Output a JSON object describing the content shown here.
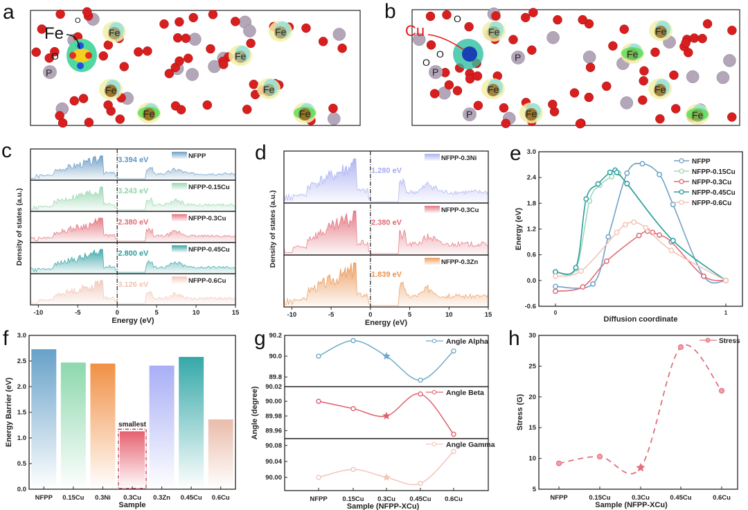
{
  "panels": {
    "a": {
      "letter": "a",
      "labels": {
        "fe_main": "Fe",
        "o": "O",
        "o_small": "O",
        "p": "P",
        "fe": "Fe"
      }
    },
    "b": {
      "letter": "b",
      "labels": {
        "cu": "Cu",
        "o": "O",
        "p": "P",
        "fe": "Fe"
      }
    },
    "c": {
      "letter": "c"
    },
    "d": {
      "letter": "d"
    },
    "e": {
      "letter": "e"
    },
    "f": {
      "letter": "f"
    },
    "g": {
      "letter": "g"
    },
    "h": {
      "letter": "h"
    }
  },
  "chart_data": [
    {
      "id": "c",
      "type": "area",
      "xlabel": "Energy (eV)",
      "ylabel": "Density of states (a.u.)",
      "xlim": [
        -11,
        15
      ],
      "xticks": [
        -10,
        -5,
        0,
        5,
        10,
        15
      ],
      "series": [
        {
          "name": "NFPP",
          "gap_label": "3.394 eV",
          "color": "#5f95c0"
        },
        {
          "name": "NFPP-0.15Cu",
          "gap_label": "3.243 eV",
          "color": "#8fd3a8"
        },
        {
          "name": "NFPP-0.3Cu",
          "gap_label": "2.380 eV",
          "color": "#e06a74"
        },
        {
          "name": "NFPP-0.45Cu",
          "gap_label": "2.800 eV",
          "color": "#2a9d9f"
        },
        {
          "name": "NFPP-0.6Cu",
          "gap_label": "3.126 eV",
          "color": "#f0c3b3"
        }
      ]
    },
    {
      "id": "d",
      "type": "area",
      "xlabel": "Energy (eV)",
      "ylabel": "Density of states (a.u.)",
      "xlim": [
        -11,
        15
      ],
      "xticks": [
        -10,
        -5,
        0,
        5,
        10,
        15
      ],
      "series": [
        {
          "name": "NFPP-0.3Ni",
          "gap_label": "1.280 eV",
          "color": "#a4aaf0"
        },
        {
          "name": "NFPP-0.3Cu",
          "gap_label": "2.380 eV",
          "color": "#e06a74"
        },
        {
          "name": "NFPP-0.3Zn",
          "gap_label": "1.839 eV",
          "color": "#ea9350"
        }
      ]
    },
    {
      "id": "e",
      "type": "line",
      "xlabel": "Diffusion coordinate",
      "ylabel": "Energy (eV)",
      "xlim": [
        0,
        1
      ],
      "ylim": [
        -0.6,
        3.0
      ],
      "xticks": [
        0,
        1
      ],
      "yticks": [
        -0.6,
        0.0,
        0.6,
        1.2,
        1.8,
        2.4,
        3.0
      ],
      "legend": "top-right",
      "series": [
        {
          "name": "NFPP",
          "color": "#6fa1c6",
          "x": [
            0,
            0.22,
            0.31,
            0.42,
            0.51,
            0.61,
            0.69,
            0.87,
            1
          ],
          "y": [
            -0.14,
            -0.08,
            1.02,
            2.5,
            2.72,
            2.47,
            1.77,
            0.1,
            0
          ]
        },
        {
          "name": "NFPP-0.15Cu",
          "color": "#9fd9b5",
          "x": [
            0,
            0.12,
            0.2,
            0.26,
            0.33,
            0.37,
            0.42,
            0.69,
            1
          ],
          "y": [
            0.2,
            0.27,
            1.85,
            2.22,
            2.42,
            2.5,
            2.25,
            0.93,
            0
          ]
        },
        {
          "name": "NFPP-0.3Cu",
          "color": "#e06a74",
          "x": [
            0,
            0.16,
            0.3,
            0.49,
            0.54,
            0.57,
            0.61,
            0.68,
            0.87,
            1
          ],
          "y": [
            -0.25,
            -0.15,
            0.45,
            1.05,
            1.15,
            1.12,
            1.06,
            0.9,
            0.1,
            0
          ]
        },
        {
          "name": "NFPP-0.45Cu",
          "color": "#2a9d9f",
          "x": [
            0,
            0.12,
            0.18,
            0.25,
            0.32,
            0.35,
            0.36,
            0.42,
            0.69,
            1
          ],
          "y": [
            0.2,
            0.3,
            1.9,
            2.25,
            2.52,
            2.57,
            2.52,
            2.26,
            0.93,
            0
          ]
        },
        {
          "name": "NFPP-0.6Cu",
          "color": "#f1c4b6",
          "x": [
            0,
            0.15,
            0.36,
            0.41,
            0.46,
            0.53,
            0.68,
            1
          ],
          "y": [
            0.1,
            0.22,
            1.12,
            1.3,
            1.36,
            1.23,
            0.7,
            0
          ]
        }
      ]
    },
    {
      "id": "f",
      "type": "bar",
      "xlabel": "Sample",
      "ylabel": "Energy Barrier (eV)",
      "ylim": [
        0,
        3.0
      ],
      "yticks": [
        0.0,
        0.5,
        1.0,
        1.5,
        2.0,
        2.5,
        3.0
      ],
      "categories": [
        "NFPP",
        "0.15Cu",
        "0.3Ni",
        "0.3Cu",
        "0.3Zn",
        "0.45Cu",
        "0.6Cu"
      ],
      "values": [
        2.73,
        2.47,
        2.45,
        1.13,
        2.41,
        2.58,
        1.36
      ],
      "colors": [
        "#5f9cc6",
        "#86d6a8",
        "#f08a3a",
        "#e45a68",
        "#a3aaf5",
        "#2aa3a3",
        "#e9b8a6"
      ],
      "annotation": {
        "category": "0.3Cu",
        "text": "smallest"
      }
    },
    {
      "id": "g",
      "type": "line",
      "xlabel": "Sample (NFPP-XCu)",
      "ylabel": "Angle (degree)",
      "categories": [
        "NFPP",
        "0.15Cu",
        "0.3Cu",
        "0.45Cu",
        "0.6Cu"
      ],
      "highlight": "0.3Cu",
      "series": [
        {
          "name": "Angle Alpha",
          "color": "#6fa8c8",
          "ylim": [
            89.707,
            90.2
          ],
          "yticks": [
            "90.2",
            "90.0",
            "89.8"
          ],
          "ytick_values": [
            90.2,
            90.0,
            89.8
          ],
          "values": [
            90.0,
            90.15,
            90.0,
            89.77,
            90.05
          ]
        },
        {
          "name": "Angle Beta",
          "color": "#df5e6c",
          "ylim": [
            89.949,
            90.02
          ],
          "yticks": [
            "90.02",
            "90.00",
            "89.98",
            "89.96"
          ],
          "ytick_values": [
            90.02,
            90.0,
            89.98,
            89.96
          ],
          "values": [
            90.0,
            89.99,
            89.98,
            90.01,
            89.955
          ]
        },
        {
          "name": "Angle Gamma",
          "color": "#f0c6b8",
          "ylim": [
            89.967,
            90.097
          ],
          "yticks": [
            "90.08",
            "90.04",
            "90.00"
          ],
          "ytick_values": [
            90.08,
            90.04,
            90.0
          ],
          "values": [
            90.0,
            90.02,
            90.0,
            89.985,
            90.065
          ]
        }
      ]
    },
    {
      "id": "h",
      "type": "line",
      "xlabel": "Sample (NFPP-XCu)",
      "ylabel": "Stress (G)",
      "ylim": [
        5,
        30
      ],
      "yticks": [
        5,
        10,
        15,
        20,
        25,
        30
      ],
      "categories": [
        "NFPP",
        "0.15Cu",
        "0.3Cu",
        "0.45Cu",
        "0.6Cu"
      ],
      "highlight": "0.3Cu",
      "series": [
        {
          "name": "Stress",
          "color": "#e0707c",
          "values": [
            9.2,
            10.3,
            8.5,
            28.1,
            21.0
          ]
        }
      ]
    }
  ]
}
